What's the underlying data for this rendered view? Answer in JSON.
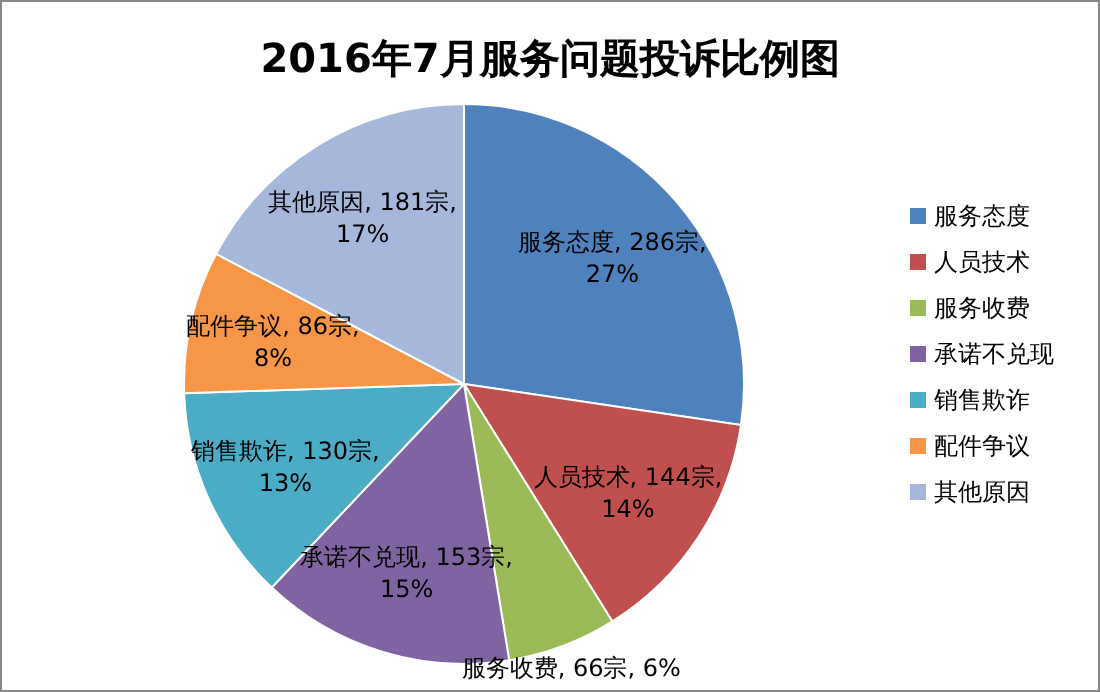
{
  "chart_data": {
    "type": "pie",
    "title": "2016年7月服务问题投诉比例图",
    "categories": [
      "服务态度",
      "人员技术",
      "服务收费",
      "承诺不兑现",
      "销售欺诈",
      "配件争议",
      "其他原因"
    ],
    "values": [
      286,
      144,
      66,
      153,
      130,
      86,
      181
    ],
    "value_labels": [
      "服务态度, 286宗, 27%",
      "人员技术, 144宗, 14%",
      "服务收费, 66宗, 6%",
      "承诺不兑现, 153宗, 15%",
      "销售欺诈, 130宗, 13%",
      "配件争议, 86宗, 8%",
      "其他原因, 181宗, 17%"
    ],
    "colors": [
      "#4f81bd",
      "#c0504d",
      "#9bbb59",
      "#8064a2",
      "#4bacc6",
      "#f79646",
      "#a5b8dc"
    ],
    "legend": "right"
  }
}
